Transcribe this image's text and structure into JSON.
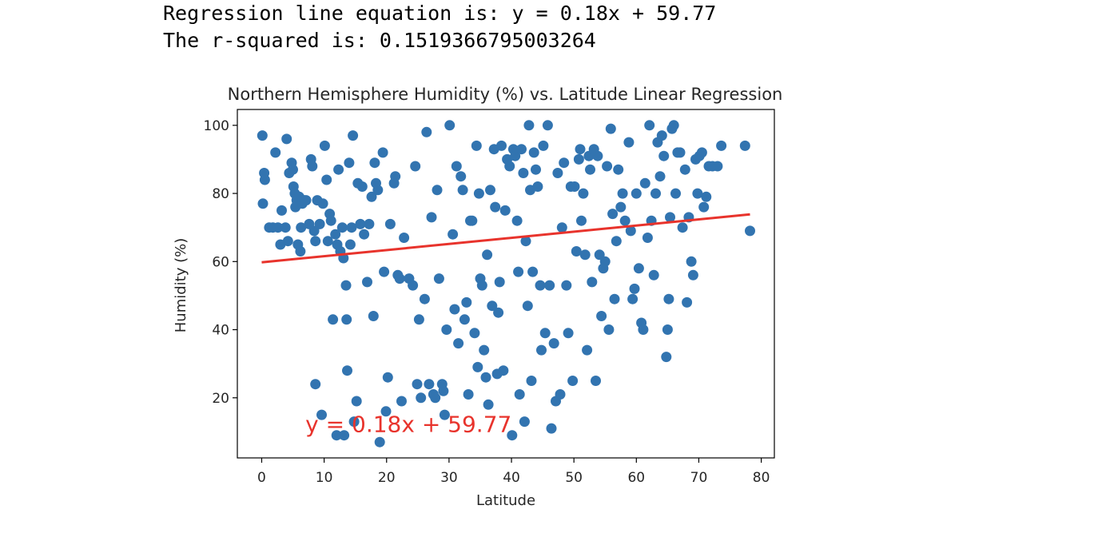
{
  "output": {
    "line1": "Regression line equation is: y = 0.18x + 59.77",
    "line2": "The r-squared is: 0.1519366795003264"
  },
  "chart_data": {
    "type": "scatter",
    "title": "Northern Hemisphere Humidity (%) vs. Latitude Linear Regression",
    "xlabel": "Latitude",
    "ylabel": "Humidity (%)",
    "xlim": [
      -3.9,
      82.1
    ],
    "ylim": [
      2.35,
      104.65
    ],
    "xticks": [
      0,
      10,
      20,
      30,
      40,
      50,
      60,
      70,
      80
    ],
    "yticks": [
      20,
      40,
      60,
      80,
      100
    ],
    "grid": false,
    "point_color": "#3274b0",
    "line_color": "#e8332c",
    "annotation": {
      "text": "y = 0.18x + 59.77",
      "x": 7,
      "y": 10
    },
    "regression": {
      "slope": 0.18,
      "intercept": 59.77,
      "x": [
        0.0,
        78.2
      ]
    },
    "points": [
      [
        0.1,
        97
      ],
      [
        0.4,
        86
      ],
      [
        0.5,
        84
      ],
      [
        0.2,
        77
      ],
      [
        1.2,
        70
      ],
      [
        1.8,
        70
      ],
      [
        2.2,
        92
      ],
      [
        2.6,
        70
      ],
      [
        3.0,
        65
      ],
      [
        3.2,
        75
      ],
      [
        3.8,
        70
      ],
      [
        4.0,
        96
      ],
      [
        4.2,
        66
      ],
      [
        4.4,
        86
      ],
      [
        4.8,
        89
      ],
      [
        5.0,
        87
      ],
      [
        5.1,
        82
      ],
      [
        5.3,
        80
      ],
      [
        5.4,
        76
      ],
      [
        5.6,
        78
      ],
      [
        5.8,
        65
      ],
      [
        6.0,
        79
      ],
      [
        6.2,
        63
      ],
      [
        6.3,
        70
      ],
      [
        6.5,
        77
      ],
      [
        6.8,
        78
      ],
      [
        7.1,
        78
      ],
      [
        7.6,
        71
      ],
      [
        7.9,
        90
      ],
      [
        8.1,
        88
      ],
      [
        8.4,
        69
      ],
      [
        8.6,
        66
      ],
      [
        8.9,
        78
      ],
      [
        9.3,
        71
      ],
      [
        9.6,
        15
      ],
      [
        8.6,
        24
      ],
      [
        9.8,
        77
      ],
      [
        10.1,
        94
      ],
      [
        10.4,
        84
      ],
      [
        10.6,
        66
      ],
      [
        10.9,
        74
      ],
      [
        11.1,
        72
      ],
      [
        11.4,
        43
      ],
      [
        11.8,
        68
      ],
      [
        12.1,
        65
      ],
      [
        12.3,
        87
      ],
      [
        12.6,
        63
      ],
      [
        12.9,
        70
      ],
      [
        13.1,
        61
      ],
      [
        13.5,
        53
      ],
      [
        13.6,
        43
      ],
      [
        13.7,
        28
      ],
      [
        14.0,
        89
      ],
      [
        14.2,
        65
      ],
      [
        14.4,
        70
      ],
      [
        14.6,
        97
      ],
      [
        14.8,
        13
      ],
      [
        15.2,
        19
      ],
      [
        15.4,
        83
      ],
      [
        15.8,
        71
      ],
      [
        16.1,
        82
      ],
      [
        16.4,
        68
      ],
      [
        16.9,
        54
      ],
      [
        17.2,
        71
      ],
      [
        17.6,
        79
      ],
      [
        17.9,
        44
      ],
      [
        18.1,
        89
      ],
      [
        18.3,
        83
      ],
      [
        18.6,
        81
      ],
      [
        18.9,
        7
      ],
      [
        12.0,
        9
      ],
      [
        13.2,
        9
      ],
      [
        19.4,
        92
      ],
      [
        19.6,
        57
      ],
      [
        19.9,
        16
      ],
      [
        20.2,
        26
      ],
      [
        20.6,
        71
      ],
      [
        21.2,
        83
      ],
      [
        21.4,
        85
      ],
      [
        21.8,
        56
      ],
      [
        22.1,
        55
      ],
      [
        22.4,
        19
      ],
      [
        22.8,
        67
      ],
      [
        23.6,
        55
      ],
      [
        24.2,
        53
      ],
      [
        24.6,
        88
      ],
      [
        24.9,
        24
      ],
      [
        25.2,
        43
      ],
      [
        25.5,
        20
      ],
      [
        26.1,
        49
      ],
      [
        26.4,
        98
      ],
      [
        26.8,
        24
      ],
      [
        27.2,
        73
      ],
      [
        27.5,
        21
      ],
      [
        27.8,
        20
      ],
      [
        28.1,
        81
      ],
      [
        28.4,
        55
      ],
      [
        28.9,
        24
      ],
      [
        29.1,
        22
      ],
      [
        29.3,
        15
      ],
      [
        29.6,
        40
      ],
      [
        30.1,
        100
      ],
      [
        30.6,
        68
      ],
      [
        30.9,
        46
      ],
      [
        31.2,
        88
      ],
      [
        31.5,
        36
      ],
      [
        31.9,
        85
      ],
      [
        32.2,
        81
      ],
      [
        32.5,
        43
      ],
      [
        32.8,
        48
      ],
      [
        33.1,
        21
      ],
      [
        33.4,
        72
      ],
      [
        33.7,
        72
      ],
      [
        34.1,
        39
      ],
      [
        34.4,
        94
      ],
      [
        34.6,
        29
      ],
      [
        34.8,
        80
      ],
      [
        35.0,
        55
      ],
      [
        35.3,
        53
      ],
      [
        35.6,
        34
      ],
      [
        35.9,
        26
      ],
      [
        36.1,
        62
      ],
      [
        36.3,
        18
      ],
      [
        36.6,
        81
      ],
      [
        36.9,
        47
      ],
      [
        37.2,
        93
      ],
      [
        37.4,
        76
      ],
      [
        37.7,
        27
      ],
      [
        37.9,
        45
      ],
      [
        38.1,
        54
      ],
      [
        38.4,
        94
      ],
      [
        38.7,
        28
      ],
      [
        39.0,
        75
      ],
      [
        39.3,
        90
      ],
      [
        39.7,
        88
      ],
      [
        40.1,
        9
      ],
      [
        40.3,
        93
      ],
      [
        40.6,
        91
      ],
      [
        40.9,
        72
      ],
      [
        41.1,
        57
      ],
      [
        41.3,
        21
      ],
      [
        41.6,
        93
      ],
      [
        41.9,
        86
      ],
      [
        42.1,
        13
      ],
      [
        42.3,
        66
      ],
      [
        42.6,
        47
      ],
      [
        42.8,
        100
      ],
      [
        43.0,
        81
      ],
      [
        43.2,
        25
      ],
      [
        43.4,
        57
      ],
      [
        43.6,
        92
      ],
      [
        43.9,
        87
      ],
      [
        44.2,
        82
      ],
      [
        44.6,
        53
      ],
      [
        44.8,
        34
      ],
      [
        45.1,
        94
      ],
      [
        45.4,
        39
      ],
      [
        45.8,
        100
      ],
      [
        46.1,
        53
      ],
      [
        46.4,
        11
      ],
      [
        46.8,
        36
      ],
      [
        47.1,
        19
      ],
      [
        47.4,
        86
      ],
      [
        47.8,
        21
      ],
      [
        48.1,
        70
      ],
      [
        48.4,
        89
      ],
      [
        48.8,
        53
      ],
      [
        49.1,
        39
      ],
      [
        49.5,
        82
      ],
      [
        49.8,
        25
      ],
      [
        50.1,
        82
      ],
      [
        50.4,
        63
      ],
      [
        50.8,
        90
      ],
      [
        51.0,
        93
      ],
      [
        51.2,
        72
      ],
      [
        51.5,
        80
      ],
      [
        51.8,
        62
      ],
      [
        52.1,
        34
      ],
      [
        52.4,
        91
      ],
      [
        52.6,
        87
      ],
      [
        52.9,
        54
      ],
      [
        53.2,
        93
      ],
      [
        53.5,
        25
      ],
      [
        53.8,
        91
      ],
      [
        54.1,
        62
      ],
      [
        54.4,
        44
      ],
      [
        54.7,
        58
      ],
      [
        55.0,
        60
      ],
      [
        55.3,
        88
      ],
      [
        55.6,
        40
      ],
      [
        55.9,
        99
      ],
      [
        56.2,
        74
      ],
      [
        56.5,
        49
      ],
      [
        56.8,
        66
      ],
      [
        57.1,
        87
      ],
      [
        57.5,
        76
      ],
      [
        57.8,
        80
      ],
      [
        58.2,
        72
      ],
      [
        58.8,
        95
      ],
      [
        59.1,
        69
      ],
      [
        59.4,
        49
      ],
      [
        59.7,
        52
      ],
      [
        60.0,
        80
      ],
      [
        60.4,
        58
      ],
      [
        60.8,
        42
      ],
      [
        61.1,
        40
      ],
      [
        61.4,
        83
      ],
      [
        61.8,
        67
      ],
      [
        62.1,
        100
      ],
      [
        62.4,
        72
      ],
      [
        62.8,
        56
      ],
      [
        63.1,
        80
      ],
      [
        63.4,
        95
      ],
      [
        63.8,
        85
      ],
      [
        64.1,
        97
      ],
      [
        64.4,
        91
      ],
      [
        64.8,
        32
      ],
      [
        65.0,
        40
      ],
      [
        65.2,
        49
      ],
      [
        65.4,
        73
      ],
      [
        65.7,
        99
      ],
      [
        66.0,
        100
      ],
      [
        66.3,
        80
      ],
      [
        66.6,
        92
      ],
      [
        67.0,
        92
      ],
      [
        67.4,
        70
      ],
      [
        67.8,
        87
      ],
      [
        68.1,
        48
      ],
      [
        68.4,
        73
      ],
      [
        68.8,
        60
      ],
      [
        69.1,
        56
      ],
      [
        69.5,
        90
      ],
      [
        69.8,
        80
      ],
      [
        70.1,
        91
      ],
      [
        70.5,
        92
      ],
      [
        70.8,
        76
      ],
      [
        71.2,
        79
      ],
      [
        71.6,
        88
      ],
      [
        72.2,
        88
      ],
      [
        73.0,
        88
      ],
      [
        73.6,
        94
      ],
      [
        77.4,
        94
      ],
      [
        78.2,
        69
      ]
    ]
  }
}
